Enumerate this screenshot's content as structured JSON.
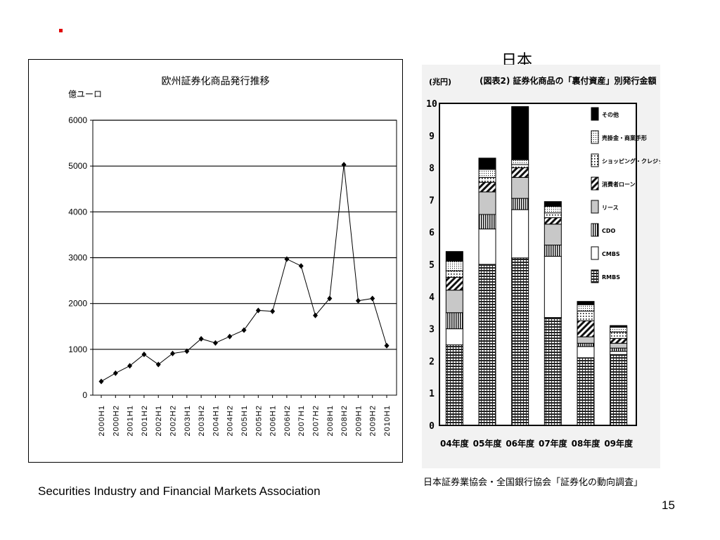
{
  "slide": {
    "heading": "日本",
    "source_en": "Securities Industry and Financial Markets Association",
    "source_jp": "日本証券業協会・全国銀行協会「証券化の動向調査」",
    "page_number": "15",
    "accent_color": "#e00000"
  },
  "chart_data": [
    {
      "type": "line",
      "title": "欧州証券化商品発行推移",
      "ylabel": "億ユーロ",
      "xlabel": "",
      "ylim": [
        0,
        6000
      ],
      "yticks": [
        0,
        1000,
        2000,
        3000,
        4000,
        5000,
        6000
      ],
      "grid": true,
      "categories": [
        "2000H1",
        "2000H2",
        "2001H1",
        "2001H2",
        "2002H1",
        "2002H2",
        "2003H1",
        "2003H2",
        "2004H1",
        "2004H2",
        "2005H1",
        "2005H2",
        "2006H1",
        "2006H2",
        "2007H1",
        "2007H2",
        "2008H1",
        "2008H2",
        "2009H1",
        "2009H2",
        "2010H1"
      ],
      "series": [
        {
          "values": [
            300,
            480,
            640,
            890,
            670,
            910,
            960,
            1230,
            1140,
            1280,
            1420,
            1850,
            1830,
            2970,
            2820,
            1740,
            2110,
            5030,
            2060,
            2110,
            1080
          ]
        }
      ]
    },
    {
      "type": "bar",
      "stacked": true,
      "title": "(図表2) 証券化商品の「裏付資産」別発行金額",
      "ylabel": "(兆円)",
      "ylim": [
        0,
        10
      ],
      "yticks": [
        "0",
        "1",
        "2",
        "3",
        "4",
        "5",
        "6",
        "7",
        "8",
        "9",
        "10"
      ],
      "categories": [
        "04年度",
        "05年度",
        "06年度",
        "07年度",
        "08年度",
        "09年度"
      ],
      "legend_position": "right",
      "series": [
        {
          "name": "RMBS",
          "values": [
            2.5,
            5.0,
            5.2,
            3.35,
            2.1,
            2.2
          ]
        },
        {
          "name": "CMBS",
          "values": [
            0.5,
            1.1,
            1.5,
            1.9,
            0.35,
            0.1
          ]
        },
        {
          "name": "CDO",
          "values": [
            0.5,
            0.45,
            0.35,
            0.35,
            0.1,
            0.1
          ]
        },
        {
          "name": "リース",
          "values": [
            0.7,
            0.7,
            0.65,
            0.65,
            0.2,
            0.15
          ]
        },
        {
          "name": "消費者ローン",
          "values": [
            0.4,
            0.3,
            0.3,
            0.2,
            0.5,
            0.15
          ]
        },
        {
          "name": "ショッピング・クレジット",
          "values": [
            0.2,
            0.15,
            0.1,
            0.15,
            0.3,
            0.2
          ]
        },
        {
          "name": "売掛金・商業手形",
          "values": [
            0.3,
            0.25,
            0.15,
            0.2,
            0.2,
            0.15
          ]
        },
        {
          "name": "その他",
          "values": [
            0.3,
            0.35,
            1.65,
            0.15,
            0.1,
            0.05
          ]
        }
      ]
    }
  ]
}
